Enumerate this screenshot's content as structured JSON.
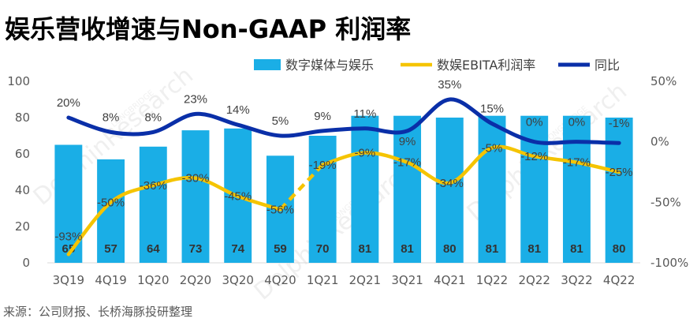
{
  "title": "娱乐营收增速与Non-GAAP 利润率",
  "source": "来源：公司财报、长桥海豚投研整理",
  "watermark": "DolphinResearch",
  "watermark_small": "LONGBRIDGE",
  "colors": {
    "bar": "#1aaee6",
    "margin_line": "#f5c400",
    "yoy_line": "#0a2fa8"
  },
  "chart_data": {
    "type": "bar",
    "categories": [
      "3Q19",
      "4Q19",
      "1Q20",
      "2Q20",
      "3Q20",
      "4Q20",
      "1Q21",
      "2Q21",
      "3Q21",
      "4Q21",
      "1Q22",
      "2Q22",
      "3Q22",
      "4Q22"
    ],
    "ylim_left": [
      0,
      100
    ],
    "yticks_left": [
      0,
      20,
      40,
      60,
      80,
      100
    ],
    "ylim_right": [
      -100,
      50
    ],
    "yticks_right": [
      -100,
      -50,
      0,
      50
    ],
    "yticks_right_labels": [
      "-100%",
      "-50%",
      "0%",
      "50%"
    ],
    "series": [
      {
        "name": "数字媒体与娱乐",
        "type": "bar",
        "axis": "left",
        "values": [
          65,
          57,
          64,
          73,
          74,
          59,
          70,
          81,
          81,
          80,
          81,
          81,
          81,
          80
        ],
        "labels": [
          "65",
          "57",
          "64",
          "73",
          "74",
          "59",
          "70",
          "81",
          "81",
          "80",
          "81",
          "81",
          "81",
          "80"
        ]
      },
      {
        "name": "数娱EBITA利润率",
        "type": "line",
        "axis": "right",
        "values": [
          -93,
          -50,
          -36,
          -30,
          -45,
          -56,
          -19,
          -9,
          -17,
          -34,
          -5,
          -12,
          -17,
          -25
        ],
        "labels": [
          "-93%",
          "-50%",
          "-36%",
          "-30%",
          "-45%",
          "-56%",
          "-19%",
          "-9%",
          "-17%",
          "-34%",
          "-5%",
          "-12%",
          "-17%",
          "-25%"
        ],
        "dashed_segment": [
          5,
          6
        ]
      },
      {
        "name": "同比",
        "type": "line",
        "axis": "right",
        "values": [
          20,
          8,
          8,
          23,
          14,
          5,
          9,
          11,
          9,
          35,
          15,
          0,
          0,
          -1
        ],
        "labels": [
          "20%",
          "8%",
          "8%",
          "23%",
          "14%",
          "5%",
          "9%",
          "11%",
          "9%",
          "35%",
          "15%",
          "0%",
          "0%",
          "-1%"
        ]
      }
    ]
  }
}
